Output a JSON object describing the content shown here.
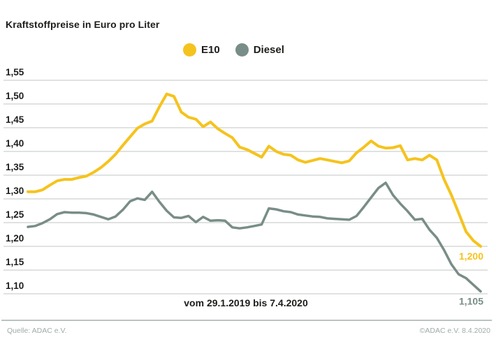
{
  "title": "Kraftstoffpreise in Euro pro Liter",
  "legend": {
    "items": [
      {
        "label": "E10",
        "color": "#F5C31D"
      },
      {
        "label": "Diesel",
        "color": "#798D88"
      }
    ]
  },
  "chart_data": {
    "type": "line",
    "title": "Kraftstoffpreise in Euro pro Liter",
    "x_caption": "vom 29.1.2019 bis 7.4.2020",
    "x_description": "weekly price readings from 29.1.2019 to 7.4.2020",
    "ylabel": "Euro pro Liter",
    "ylim": [
      1.1,
      1.55
    ],
    "grid": true,
    "legend_position": "top-center",
    "yticks": [
      {
        "v": 1.55,
        "label": "1,55"
      },
      {
        "v": 1.5,
        "label": "1,50"
      },
      {
        "v": 1.45,
        "label": "1,45"
      },
      {
        "v": 1.4,
        "label": "1,40"
      },
      {
        "v": 1.35,
        "label": "1,35"
      },
      {
        "v": 1.3,
        "label": "1,30"
      },
      {
        "v": 1.25,
        "label": "1,25"
      },
      {
        "v": 1.2,
        "label": "1,20"
      },
      {
        "v": 1.15,
        "label": "1,15"
      },
      {
        "v": 1.1,
        "label": "1,10"
      }
    ],
    "series": [
      {
        "name": "E10",
        "color": "#F5C31D",
        "end_label": "1,200",
        "end_value": 1.2,
        "values": [
          1.315,
          1.315,
          1.319,
          1.329,
          1.338,
          1.341,
          1.341,
          1.345,
          1.348,
          1.356,
          1.366,
          1.379,
          1.394,
          1.413,
          1.431,
          1.449,
          1.458,
          1.464,
          1.494,
          1.521,
          1.516,
          1.483,
          1.472,
          1.468,
          1.452,
          1.462,
          1.448,
          1.438,
          1.429,
          1.409,
          1.404,
          1.396,
          1.388,
          1.411,
          1.4,
          1.394,
          1.392,
          1.382,
          1.377,
          1.381,
          1.385,
          1.382,
          1.379,
          1.376,
          1.38,
          1.397,
          1.409,
          1.422,
          1.411,
          1.407,
          1.408,
          1.412,
          1.382,
          1.385,
          1.382,
          1.392,
          1.382,
          1.341,
          1.308,
          1.27,
          1.231,
          1.212,
          1.2
        ]
      },
      {
        "name": "Diesel",
        "color": "#798D88",
        "end_label": "1,105",
        "end_value": 1.105,
        "values": [
          1.241,
          1.243,
          1.249,
          1.257,
          1.268,
          1.272,
          1.271,
          1.271,
          1.27,
          1.267,
          1.262,
          1.257,
          1.263,
          1.277,
          1.295,
          1.301,
          1.298,
          1.315,
          1.294,
          1.275,
          1.261,
          1.26,
          1.264,
          1.251,
          1.262,
          1.254,
          1.255,
          1.254,
          1.24,
          1.238,
          1.24,
          1.243,
          1.246,
          1.28,
          1.278,
          1.274,
          1.272,
          1.267,
          1.265,
          1.263,
          1.262,
          1.259,
          1.258,
          1.257,
          1.256,
          1.264,
          1.283,
          1.303,
          1.323,
          1.334,
          1.308,
          1.29,
          1.274,
          1.256,
          1.258,
          1.235,
          1.218,
          1.192,
          1.162,
          1.141,
          1.133,
          1.119,
          1.105
        ]
      }
    ],
    "style": {
      "grid_color": "#CDD1D0",
      "tick_label_color": "#1d1d1b",
      "line_width_e10": 4,
      "line_width_diesel": 3.5
    }
  },
  "footer": {
    "source": "Quelle: ADAC e.V.",
    "copyright": "©ADAC e.V. 8.4.2020"
  }
}
